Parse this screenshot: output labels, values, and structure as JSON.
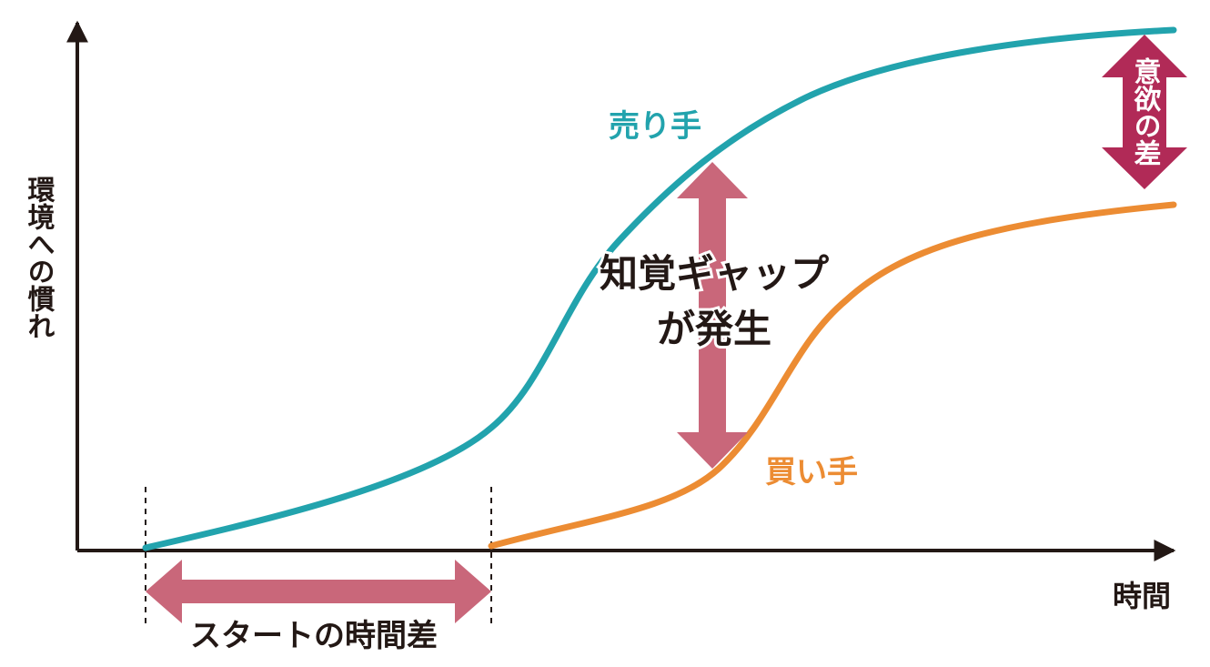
{
  "axes": {
    "y_label": "環境への慣れ",
    "x_label": "時間"
  },
  "curves": [
    {
      "label": "売り手"
    },
    {
      "label": "買い手"
    }
  ],
  "annotations": {
    "gap": [
      "知覚ギャップ",
      "が発生"
    ],
    "start_diff": "スタートの時間差",
    "motivation_diff": "意欲の差"
  }
}
